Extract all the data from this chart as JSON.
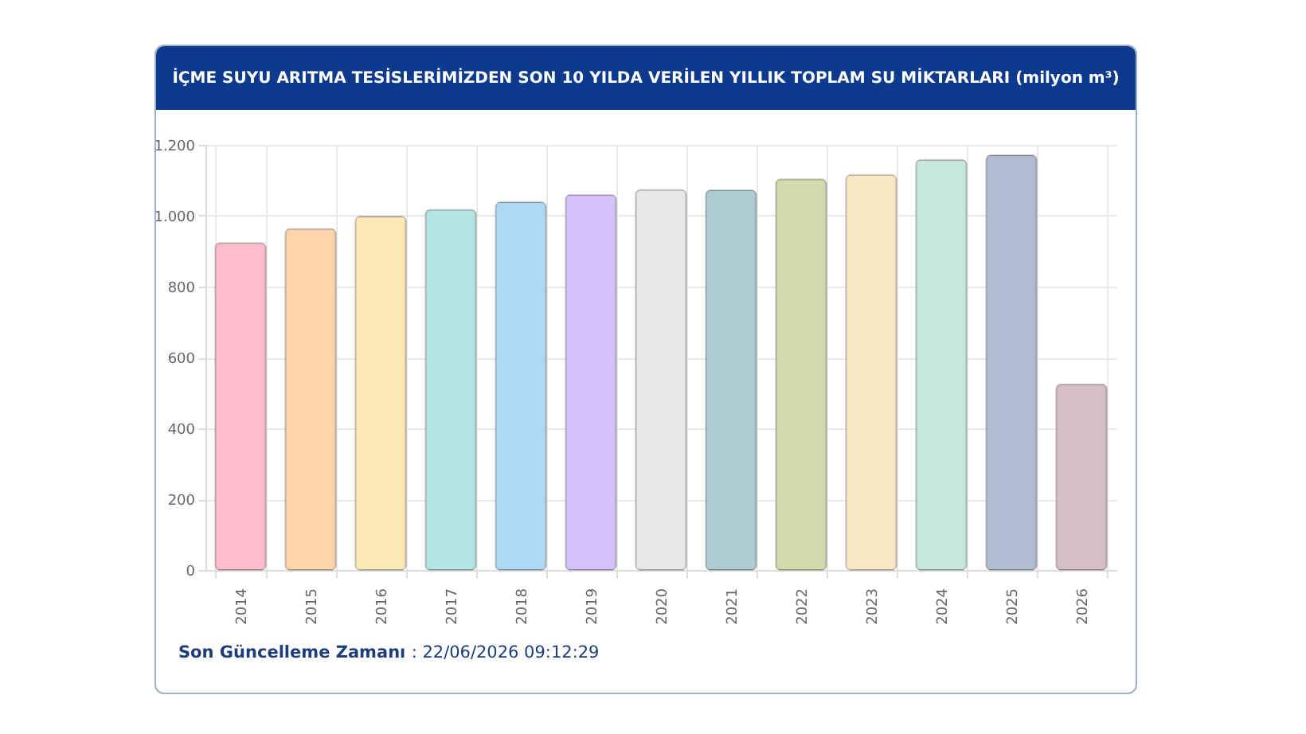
{
  "chart_data": {
    "type": "bar",
    "title": "İÇME SUYU ARITMA TESİSLERİMİZDEN SON 10 YILDA VERİLEN YILLIK TOPLAM SU MİKTARLARI (milyon m³)",
    "categories": [
      "2014",
      "2015",
      "2016",
      "2017",
      "2018",
      "2019",
      "2020",
      "2021",
      "2022",
      "2023",
      "2024",
      "2025",
      "2026"
    ],
    "values": [
      923,
      963,
      998,
      1017,
      1038,
      1059,
      1073,
      1072,
      1103,
      1115,
      1158,
      1171,
      524
    ],
    "colors": [
      "#fdbdcd",
      "#fdd5ab",
      "#fde8b8",
      "#b5e5e2",
      "#aed8f5",
      "#d6c1fb",
      "#e6e7e9",
      "#adcbd0",
      "#d3d9ab",
      "#f8e8c6",
      "#c7e6de",
      "#aebdd1",
      "#d6bec7"
    ],
    "ylim": [
      0,
      1200
    ],
    "yticks": [
      0,
      200,
      400,
      600,
      800,
      {
        "value": 1000,
        "label": "1.000"
      },
      {
        "value": 1200,
        "label": "1.200"
      }
    ],
    "grid": true,
    "annotations": [
      "Son Güncelleme Zamanı : 22/06/2026 09:12:29"
    ]
  }
}
